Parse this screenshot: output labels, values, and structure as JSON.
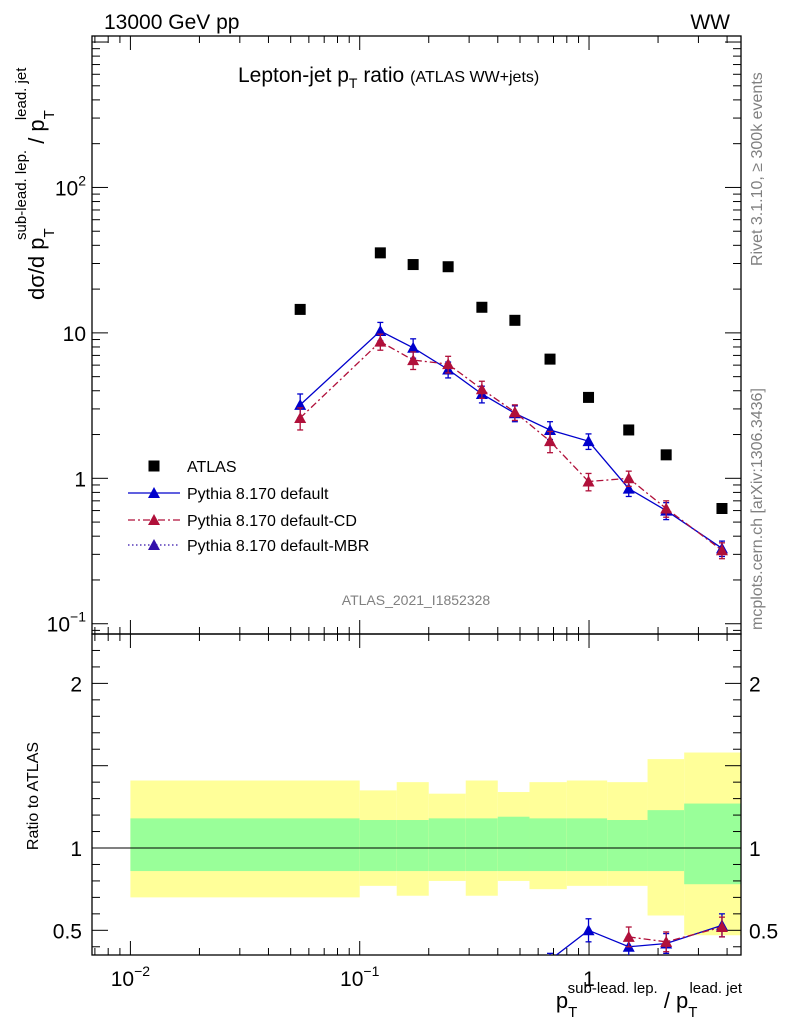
{
  "header": {
    "left": "13000 GeV pp",
    "right": "WW"
  },
  "side_texts": {
    "rivet": "Rivet 3.1.10, ≥ 300k events",
    "mcplots": "mcplots.cern.ch [arXiv:1306.3436]"
  },
  "watermark": "ATLAS_2021_I1852328",
  "chart_data": [
    {
      "panel": "main",
      "type": "scatter",
      "title": "Lepton-jet p_T ratio",
      "title_parts": {
        "main": "Lepton-jet p",
        "sub": "T",
        "after": " ratio",
        "small": "(ATLAS WW+jets)"
      },
      "ylabel": "dσ/d p_T^sub-lead. lep. / p_T^lead. jet",
      "ylabel_parts": {
        "lead": "dσ/d p",
        "sub1": "T",
        "sup1": "sub-lead. lep.",
        "mid": " / p",
        "sub2": "T",
        "sup2": "lead. jet"
      },
      "xscale": "log",
      "yscale": "log",
      "xlim": [
        0.0068,
        4.6
      ],
      "ylim": [
        0.085,
        1100
      ],
      "yticks": [
        {
          "label_base": "10",
          "label_exp": "−1"
        },
        {
          "label_base": "1",
          "label_exp": ""
        },
        {
          "label_base": "10",
          "label_exp": ""
        },
        {
          "label_base": "10",
          "label_exp": "2"
        }
      ],
      "ytick_values": [
        0.1,
        1,
        10,
        100
      ],
      "legend_position": "lower-left",
      "series": [
        {
          "name": "ATLAS",
          "color": "#000000",
          "marker": "square",
          "x": [
            0.055,
            0.123,
            0.171,
            0.243,
            0.341,
            0.475,
            0.676,
            0.995,
            1.49,
            2.17,
            3.8
          ],
          "y": [
            14.5,
            35.5,
            29.5,
            28.5,
            15.0,
            12.2,
            6.6,
            3.6,
            2.15,
            1.45,
            0.62
          ]
        },
        {
          "name": "Pythia 8.170 default",
          "color": "#0000cc",
          "marker": "triangle",
          "line": "solid",
          "x": [
            0.055,
            0.123,
            0.171,
            0.243,
            0.341,
            0.475,
            0.676,
            0.995,
            1.49,
            2.17,
            3.8
          ],
          "y": [
            3.2,
            10.3,
            7.9,
            5.6,
            3.8,
            2.8,
            2.15,
            1.8,
            0.85,
            0.6,
            0.33
          ],
          "err": [
            0.6,
            1.5,
            1.2,
            0.7,
            0.5,
            0.35,
            0.3,
            0.22,
            0.1,
            0.08,
            0.04
          ]
        },
        {
          "name": "Pythia 8.170 default-CD",
          "color": "#b0103a",
          "marker": "triangle",
          "line": "dashdot",
          "x": [
            0.055,
            0.123,
            0.171,
            0.243,
            0.341,
            0.475,
            0.676,
            0.995,
            1.49,
            2.17,
            3.8
          ],
          "y": [
            2.6,
            8.7,
            6.5,
            6.1,
            4.1,
            2.85,
            1.8,
            0.95,
            1.0,
            0.62,
            0.32
          ],
          "err": [
            0.45,
            1.1,
            0.9,
            0.8,
            0.55,
            0.35,
            0.3,
            0.13,
            0.12,
            0.08,
            0.04
          ]
        },
        {
          "name": "Pythia 8.170 default-MBR",
          "color": "#3311aa",
          "marker": "triangle",
          "line": "dotted",
          "x": [],
          "y": []
        }
      ]
    },
    {
      "panel": "ratio",
      "type": "area",
      "ylabel": "Ratio to ATLAS",
      "xlabel": "p_T^sub-lead. lep. / p_T^lead. jet",
      "xlabel_parts": {
        "lead": "p",
        "sub1": "T",
        "sup1": "sub-lead. lep.",
        "mid": " / p",
        "sub2": "T",
        "sup2": "lead. jet"
      },
      "xscale": "log",
      "xlim": [
        0.0068,
        4.6
      ],
      "ylim": [
        0.35,
        2.3
      ],
      "xticks": [
        {
          "label_base": "10",
          "label_exp": "−2"
        },
        {
          "label_base": "10",
          "label_exp": "−1"
        },
        {
          "label_base": "1",
          "label_exp": ""
        }
      ],
      "xtick_values": [
        0.01,
        0.1,
        1
      ],
      "yticks": [
        "0.5",
        "1",
        "2"
      ],
      "ytick_values": [
        0.5,
        1,
        2
      ],
      "band_edges": [
        0.01,
        0.1,
        0.145,
        0.2,
        0.29,
        0.4,
        0.55,
        0.8,
        1.2,
        1.8,
        2.6,
        4.6
      ],
      "band_stat": {
        "color": "#99ff99",
        "lo": [
          0.86,
          0.86,
          0.86,
          0.86,
          0.86,
          0.86,
          0.86,
          0.86,
          0.86,
          0.86,
          0.78
        ],
        "hi": [
          1.18,
          1.17,
          1.17,
          1.18,
          1.18,
          1.19,
          1.18,
          1.18,
          1.17,
          1.23,
          1.27
        ]
      },
      "band_total": {
        "color": "#ffff99",
        "lo": [
          0.7,
          0.77,
          0.71,
          0.8,
          0.71,
          0.8,
          0.75,
          0.77,
          0.77,
          0.59,
          0.47
        ],
        "hi": [
          1.41,
          1.35,
          1.4,
          1.33,
          1.41,
          1.34,
          1.4,
          1.41,
          1.4,
          1.54,
          1.58
        ]
      },
      "series": [
        {
          "name": "Pythia 8.170 default",
          "color": "#0000cc",
          "x": [
            0.676,
            0.995,
            1.49,
            2.17,
            3.8
          ],
          "y": [
            0.32,
            0.5,
            0.4,
            0.42,
            0.53
          ],
          "err": [
            0.04,
            0.07,
            0.06,
            0.06,
            0.07
          ]
        },
        {
          "name": "Pythia 8.170 default-CD",
          "color": "#b0103a",
          "x": [
            1.49,
            2.17,
            3.8
          ],
          "y": [
            0.46,
            0.43,
            0.52
          ],
          "err": [
            0.06,
            0.06,
            0.06
          ]
        }
      ]
    }
  ]
}
